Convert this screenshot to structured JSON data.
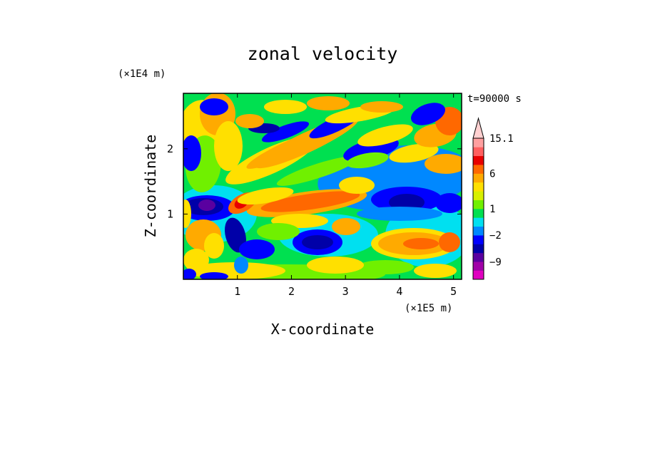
{
  "chart_data": {
    "type": "heatmap",
    "title": "zonal velocity",
    "xlabel": "X-coordinate",
    "ylabel": "Z-coordinate",
    "x_unit": "(×1E5 m)",
    "y_unit": "(×1E4 m)",
    "time_label": "t=90000 s",
    "xlim": [
      0,
      5.15
    ],
    "ylim": [
      0,
      2.85
    ],
    "x_ticks": [
      "1",
      "2",
      "3",
      "4",
      "5"
    ],
    "y_ticks": [
      "1",
      "2"
    ],
    "colorbar": {
      "labels": [
        "15.1",
        "6",
        "1",
        "−2",
        "−9"
      ],
      "label_values": [
        15.1,
        6,
        1,
        -2,
        -9
      ],
      "levels": [
        -15,
        -12,
        -9,
        -6,
        -4,
        -2,
        -1,
        0,
        1,
        2,
        3,
        4,
        6,
        8,
        10,
        12.5,
        15.1
      ],
      "colors": [
        "#e000c0",
        "#a000a8",
        "#5a00a0",
        "#0000a8",
        "#0000ff",
        "#0088ff",
        "#00e0f0",
        "#00e050",
        "#70f000",
        "#d8f000",
        "#ffe000",
        "#ffaa00",
        "#ff6800",
        "#e80000",
        "#ff6060",
        "#ffa0a0",
        "#ffd0d0"
      ],
      "extend_max": true
    }
  }
}
